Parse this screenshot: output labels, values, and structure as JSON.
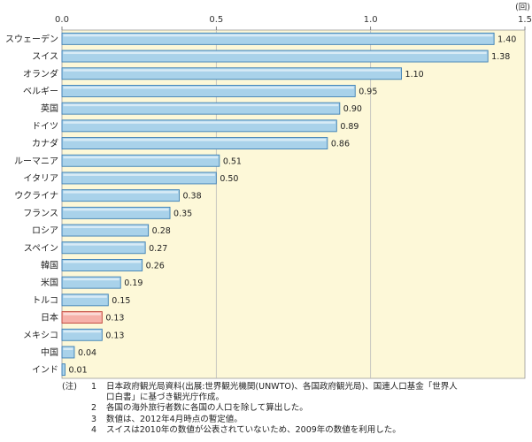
{
  "chart_data": {
    "type": "bar",
    "orientation": "horizontal",
    "unit": "(回)",
    "xlim": [
      0,
      1.5
    ],
    "xticks": [
      "0.0",
      "0.5",
      "1.0",
      "1.5"
    ],
    "categories": [
      "スウェーデン",
      "スイス",
      "オランダ",
      "ベルギー",
      "英国",
      "ドイツ",
      "カナダ",
      "ルーマニア",
      "イタリア",
      "ウクライナ",
      "フランス",
      "ロシア",
      "スペイン",
      "韓国",
      "米国",
      "トルコ",
      "日本",
      "メキシコ",
      "中国",
      "インド"
    ],
    "values": [
      1.4,
      1.38,
      1.1,
      0.95,
      0.9,
      0.89,
      0.86,
      0.51,
      0.5,
      0.38,
      0.35,
      0.28,
      0.27,
      0.26,
      0.19,
      0.15,
      0.13,
      0.13,
      0.04,
      0.01
    ],
    "value_labels": [
      "1.40",
      "1.38",
      "1.10",
      "0.95",
      "0.90",
      "0.89",
      "0.86",
      "0.51",
      "0.50",
      "0.38",
      "0.35",
      "0.28",
      "0.27",
      "0.26",
      "0.19",
      "0.15",
      "0.13",
      "0.13",
      "0.04",
      "0.01"
    ],
    "highlight_category": "日本",
    "grid": true,
    "colors": {
      "bar": "#a9d2ea",
      "bar_edge": "#3d7fb5",
      "highlight": "#f6b1a9",
      "highlight_edge": "#c0443a",
      "plot_background": "#fdf8d8",
      "grid": "#bbbbbb"
    }
  },
  "notes": {
    "prefix": "(注)",
    "items": [
      {
        "num": "1",
        "lines": [
          "日本政府観光局資料(出展:世界観光機関(UNWTO)、各国政府観光局)、国連人口基金「世界人",
          "口白書」に基づき観光庁作成。"
        ]
      },
      {
        "num": "2",
        "lines": [
          "各国の海外旅行者数に各国の人口を除して算出した。"
        ]
      },
      {
        "num": "3",
        "lines": [
          "数値は、2012年4月時点の暫定値。"
        ]
      },
      {
        "num": "4",
        "lines": [
          "スイスは2010年の数値が公表されていないため、2009年の数値を利用した。"
        ]
      }
    ]
  }
}
